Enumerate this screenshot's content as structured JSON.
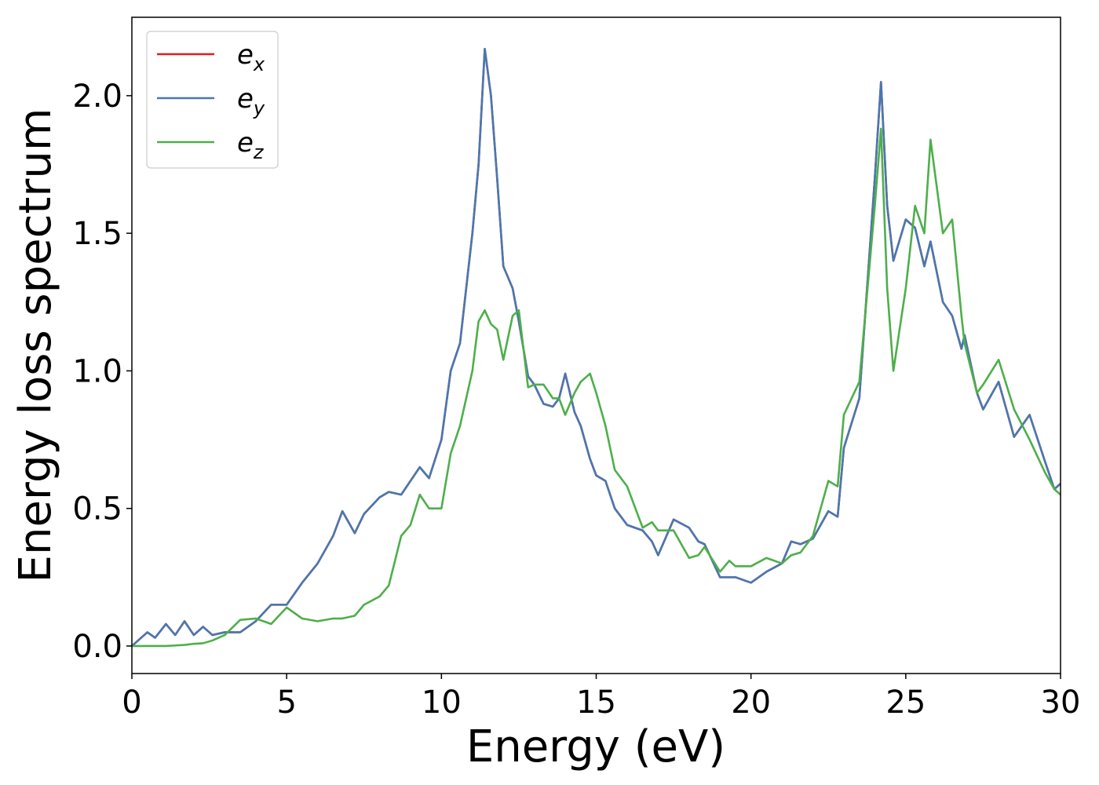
{
  "chart_data": {
    "type": "line",
    "xlabel": "Energy (eV)",
    "ylabel": "Energy loss spectrum",
    "x": [
      0,
      0.5,
      0.75,
      1.1,
      1.4,
      1.7,
      2.0,
      2.3,
      2.6,
      3,
      3.5,
      4,
      4.5,
      5,
      5.5,
      6,
      6.5,
      6.8,
      7.2,
      7.5,
      8,
      8.3,
      8.7,
      9,
      9.3,
      9.6,
      10,
      10.3,
      10.6,
      11,
      11.2,
      11.4,
      11.6,
      11.8,
      12,
      12.3,
      12.5,
      12.8,
      13,
      13.3,
      13.6,
      13.8,
      14,
      14.3,
      14.5,
      14.8,
      15,
      15.3,
      15.6,
      16,
      16.5,
      16.8,
      17,
      17.5,
      18,
      18.3,
      18.5,
      19,
      19.3,
      19.5,
      20,
      20.5,
      21,
      21.3,
      21.6,
      22,
      22.5,
      22.8,
      23,
      23.5,
      24,
      24.2,
      24.4,
      24.6,
      25,
      25.3,
      25.6,
      25.8,
      26.2,
      26.5,
      26.8,
      26.9,
      27.3,
      27.5,
      28,
      28.5,
      29,
      29.5,
      29.8,
      30
    ],
    "series": [
      {
        "name": "e_x",
        "color": "#e41a1c",
        "values": [
          0,
          0.05,
          0.03,
          0.08,
          0.04,
          0.09,
          0.04,
          0.07,
          0.04,
          0.05,
          0.05,
          0.09,
          0.15,
          0.15,
          0.23,
          0.3,
          0.4,
          0.49,
          0.41,
          0.48,
          0.54,
          0.56,
          0.55,
          0.6,
          0.65,
          0.61,
          0.75,
          1.0,
          1.1,
          1.5,
          1.75,
          2.17,
          2.0,
          1.7,
          1.38,
          1.3,
          1.18,
          0.98,
          0.95,
          0.88,
          0.87,
          0.9,
          0.99,
          0.85,
          0.8,
          0.68,
          0.62,
          0.6,
          0.5,
          0.44,
          0.42,
          0.38,
          0.33,
          0.46,
          0.43,
          0.38,
          0.37,
          0.25,
          0.25,
          0.25,
          0.23,
          0.27,
          0.3,
          0.38,
          0.37,
          0.39,
          0.49,
          0.47,
          0.72,
          0.9,
          1.7,
          2.05,
          1.6,
          1.4,
          1.55,
          1.52,
          1.38,
          1.47,
          1.25,
          1.2,
          1.08,
          1.13,
          0.92,
          0.86,
          0.96,
          0.76,
          0.84,
          0.67,
          0.57,
          0.59
        ]
      },
      {
        "name": "e_y",
        "color": "#4878b0",
        "values": [
          0,
          0.05,
          0.03,
          0.08,
          0.04,
          0.09,
          0.04,
          0.07,
          0.04,
          0.05,
          0.05,
          0.09,
          0.15,
          0.15,
          0.23,
          0.3,
          0.4,
          0.49,
          0.41,
          0.48,
          0.54,
          0.56,
          0.55,
          0.6,
          0.65,
          0.61,
          0.75,
          1.0,
          1.1,
          1.5,
          1.75,
          2.17,
          2.0,
          1.7,
          1.38,
          1.3,
          1.18,
          0.98,
          0.95,
          0.88,
          0.87,
          0.9,
          0.99,
          0.85,
          0.8,
          0.68,
          0.62,
          0.6,
          0.5,
          0.44,
          0.42,
          0.38,
          0.33,
          0.46,
          0.43,
          0.38,
          0.37,
          0.25,
          0.25,
          0.25,
          0.23,
          0.27,
          0.3,
          0.38,
          0.37,
          0.39,
          0.49,
          0.47,
          0.72,
          0.9,
          1.7,
          2.05,
          1.6,
          1.4,
          1.55,
          1.52,
          1.38,
          1.47,
          1.25,
          1.2,
          1.08,
          1.13,
          0.92,
          0.86,
          0.96,
          0.76,
          0.84,
          0.67,
          0.57,
          0.59
        ]
      },
      {
        "name": "e_z",
        "color": "#4daf4a",
        "values": [
          0,
          0,
          0,
          0,
          0.002,
          0.004,
          0.008,
          0.01,
          0.02,
          0.04,
          0.095,
          0.1,
          0.08,
          0.14,
          0.1,
          0.09,
          0.1,
          0.1,
          0.11,
          0.15,
          0.18,
          0.22,
          0.4,
          0.44,
          0.55,
          0.5,
          0.5,
          0.7,
          0.8,
          1.0,
          1.18,
          1.22,
          1.17,
          1.15,
          1.04,
          1.2,
          1.22,
          0.94,
          0.95,
          0.95,
          0.9,
          0.9,
          0.84,
          0.92,
          0.96,
          0.99,
          0.92,
          0.8,
          0.64,
          0.58,
          0.43,
          0.45,
          0.42,
          0.42,
          0.32,
          0.33,
          0.36,
          0.27,
          0.31,
          0.29,
          0.29,
          0.32,
          0.3,
          0.33,
          0.34,
          0.4,
          0.6,
          0.58,
          0.84,
          0.96,
          1.6,
          1.88,
          1.3,
          1.0,
          1.3,
          1.6,
          1.5,
          1.84,
          1.5,
          1.55,
          1.2,
          1.1,
          0.92,
          0.95,
          1.04,
          0.86,
          0.75,
          0.63,
          0.57,
          0.55
        ]
      }
    ],
    "xlim": [
      0,
      30
    ],
    "xticks": [
      0,
      5,
      10,
      15,
      20,
      25,
      30
    ],
    "ylim": [
      -0.1,
      2.285
    ],
    "yticks": [
      {
        "value": 0,
        "label": "0.0"
      },
      0.5,
      {
        "value": 1,
        "label": "1.0"
      },
      1.5,
      {
        "value": 2,
        "label": "2.0"
      }
    ],
    "legend": "upper left",
    "grid": false
  }
}
